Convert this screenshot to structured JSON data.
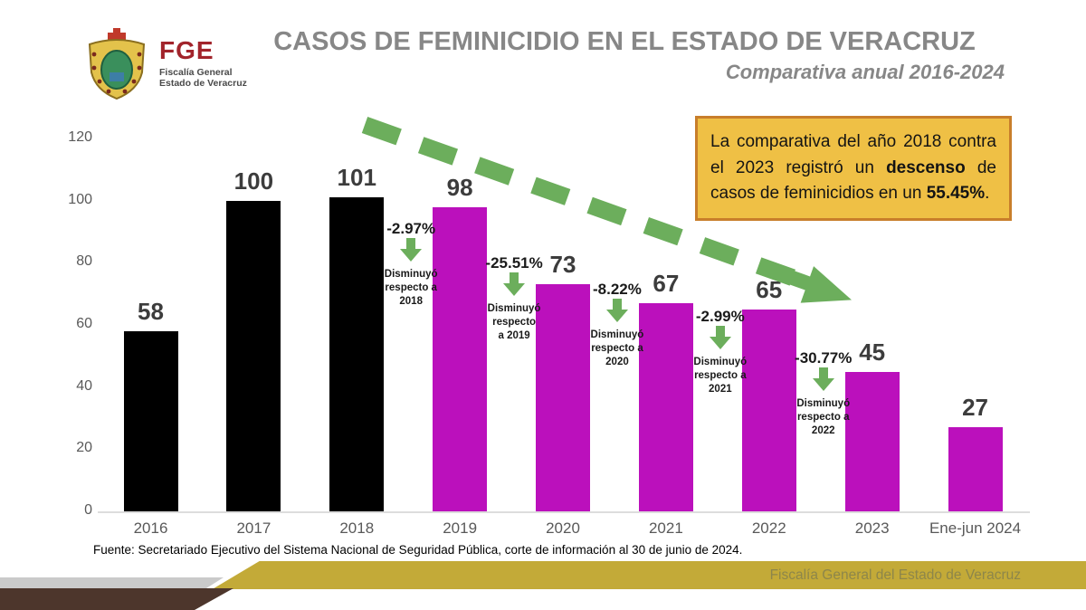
{
  "header": {
    "logo": {
      "fge": "FGE",
      "line1": "Fiscalía General",
      "line2": "Estado de Veracruz"
    },
    "title": "CASOS DE FEMINICIDIO EN EL ESTADO DE VERACRUZ",
    "subtitle": "Comparativa anual 2016-2024"
  },
  "callout": {
    "segments": [
      {
        "text": "La comparativa del año 2018 contra el 2023 registró un ",
        "bold": false
      },
      {
        "text": "descenso",
        "bold": true
      },
      {
        "text": " de casos de feminicidios en un ",
        "bold": false
      },
      {
        "text": "55.45%",
        "bold": true
      },
      {
        "text": ".",
        "bold": false
      }
    ],
    "bg_color": "#EFC045",
    "border_color": "#C87E2B"
  },
  "chart_data": {
    "type": "bar",
    "title": "CASOS DE FEMINICIDIO EN EL ESTADO DE VERACRUZ",
    "subtitle": "Comparativa anual 2016-2024",
    "categories": [
      "2016",
      "2017",
      "2018",
      "2019",
      "2020",
      "2021",
      "2022",
      "2023",
      "Ene-jun 2024"
    ],
    "values": [
      58,
      100,
      101,
      98,
      73,
      67,
      65,
      45,
      27
    ],
    "bar_colors": [
      "#000000",
      "#000000",
      "#000000",
      "#BB10BC",
      "#BB10BC",
      "#BB10BC",
      "#BB10BC",
      "#BB10BC",
      "#BB10BC"
    ],
    "xlabel": "",
    "ylabel": "",
    "ylim": [
      0,
      120
    ],
    "yticks": [
      0,
      20,
      40,
      60,
      80,
      100,
      120
    ],
    "grid": false,
    "legend": "none",
    "annotations": [
      {
        "pct": "-2.97%",
        "lines": [
          "Disminuyó",
          "respecto a",
          "2018"
        ]
      },
      {
        "pct": "-25.51%",
        "lines": [
          "Disminuyó",
          "respecto",
          "a 2019"
        ]
      },
      {
        "pct": "-8.22%",
        "lines": [
          "Disminuyó",
          "respecto a",
          "2020"
        ]
      },
      {
        "pct": "-2.99%",
        "lines": [
          "Disminuyó",
          "respecto a",
          "2021"
        ]
      },
      {
        "pct": "-30.77%",
        "lines": [
          "Disminuyó",
          "respecto a",
          "2022"
        ]
      }
    ],
    "trend_arrow_color": "#6CAE5C"
  },
  "footer": {
    "source": "Fuente: Secretariado Ejecutivo del Sistema Nacional de Seguridad Pública, corte de información al 30 de junio de 2024.",
    "band_label": "Fiscalía General del Estado de Veracruz",
    "band_color": "#C3AA38",
    "brown_color": "#4D362C",
    "gray_color": "#CACACA"
  }
}
